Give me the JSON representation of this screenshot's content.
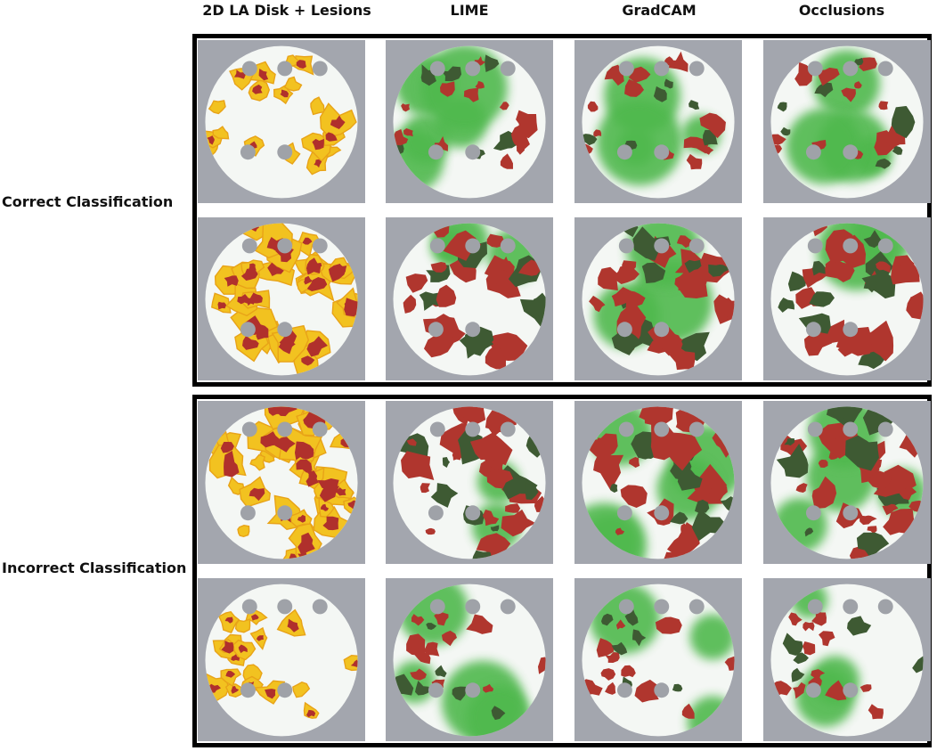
{
  "columns": [
    {
      "label": "2D LA Disk + Lesions",
      "method": "input"
    },
    {
      "label": "LIME",
      "method": "overlay"
    },
    {
      "label": "GradCAM",
      "method": "overlay"
    },
    {
      "label": "Occlusions",
      "method": "overlay"
    }
  ],
  "groups": [
    {
      "label": "Correct Classification"
    },
    {
      "label": "Incorrect Classification"
    }
  ],
  "colors": {
    "tile_background": "#a3a6ae",
    "disk_fill": "#f4f7f4",
    "hole": "#9fa2a8",
    "lesion_core": "#b0302c",
    "lesion_border": "#f2c220",
    "lesion_edge": "#e8a318",
    "overlay_red": "#b0362e",
    "overlay_dark_green": "#3e5a33",
    "overlay_green": "#4fb84e",
    "frame": "#000000"
  }
}
